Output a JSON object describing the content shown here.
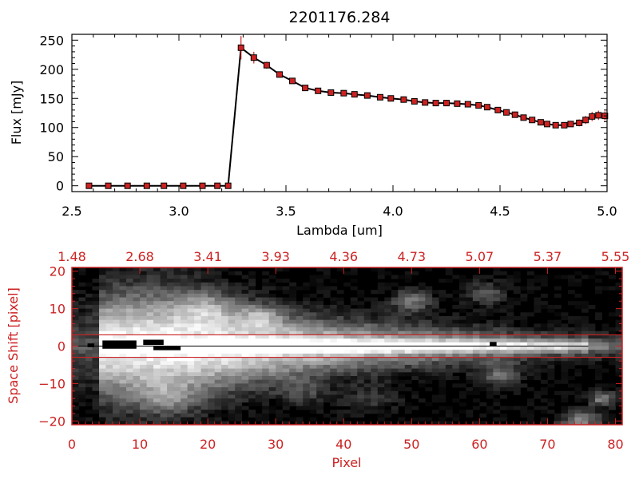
{
  "chart_data": [
    {
      "type": "line",
      "title": "2201176.284",
      "xlabel": "Lambda [um]",
      "ylabel": "Flux [mJy]",
      "xlim": [
        2.5,
        5.0
      ],
      "ylim": [
        -10,
        260
      ],
      "x_ticks": [
        2.5,
        3.0,
        3.5,
        4.0,
        4.5,
        5.0
      ],
      "x_tick_labels": [
        "2.5",
        "3.0",
        "3.5",
        "4.0",
        "4.5",
        "5.0"
      ],
      "y_ticks": [
        0,
        50,
        100,
        150,
        200,
        250
      ],
      "y_tick_labels": [
        "0",
        "50",
        "100",
        "150",
        "200",
        "250"
      ],
      "grid": false,
      "line_color": "#000000",
      "marker_color": "#cc2222",
      "errorbar_color": "#cc2222",
      "series": [
        {
          "x": [
            2.58,
            2.67,
            2.76,
            2.85,
            2.93,
            3.02,
            3.11,
            3.18,
            3.23,
            3.29,
            3.35,
            3.41,
            3.47,
            3.53,
            3.59,
            3.65,
            3.71,
            3.77,
            3.82,
            3.88,
            3.94,
            3.99,
            4.05,
            4.1,
            4.15,
            4.2,
            4.25,
            4.3,
            4.35,
            4.4,
            4.44,
            4.49,
            4.53,
            4.57,
            4.61,
            4.65,
            4.69,
            4.72,
            4.76,
            4.8,
            4.83,
            4.87,
            4.9,
            4.93,
            4.96,
            4.99
          ],
          "y": [
            0,
            0,
            0,
            0,
            0,
            0,
            0,
            0,
            0,
            237,
            220,
            207,
            191,
            180,
            168,
            163,
            160,
            159,
            157,
            155,
            152,
            150,
            148,
            145,
            143,
            142,
            142,
            141,
            140,
            138,
            135,
            130,
            126,
            122,
            117,
            113,
            109,
            106,
            104,
            104,
            106,
            108,
            113,
            119,
            121,
            120
          ],
          "err": [
            0,
            0,
            0,
            0,
            0,
            0,
            0,
            0,
            0,
            20,
            10,
            6,
            5,
            4,
            4,
            4,
            3,
            3,
            3,
            3,
            3,
            3,
            3,
            3,
            3,
            3,
            3,
            3,
            3,
            3,
            3,
            3,
            3,
            3,
            3,
            3,
            3,
            4,
            4,
            5,
            5,
            6,
            7,
            8,
            8,
            8
          ]
        }
      ]
    },
    {
      "type": "heatmap",
      "xlabel": "Pixel",
      "ylabel": "Space Shift [pixel]",
      "xlim": [
        0,
        81
      ],
      "ylim": [
        -21,
        21
      ],
      "x_ticks": [
        0,
        10,
        20,
        30,
        40,
        50,
        60,
        70,
        80
      ],
      "x_tick_labels": [
        "0",
        "10",
        "20",
        "30",
        "40",
        "50",
        "60",
        "70",
        "80"
      ],
      "y_ticks": [
        -20,
        -10,
        0,
        10,
        20
      ],
      "y_tick_labels": [
        "−20",
        "−10",
        "0",
        "10",
        "20"
      ],
      "top_axis_ticks": [
        0,
        10,
        20,
        30,
        40,
        50,
        60,
        70,
        80
      ],
      "top_axis_labels": [
        "1.48",
        "2.68",
        "3.41",
        "3.93",
        "4.36",
        "4.73",
        "5.07",
        "5.37",
        "5.55"
      ],
      "extraction_window": [
        -3,
        3
      ],
      "axis_color": "#cc2222",
      "colormap": "grayscale"
    }
  ]
}
